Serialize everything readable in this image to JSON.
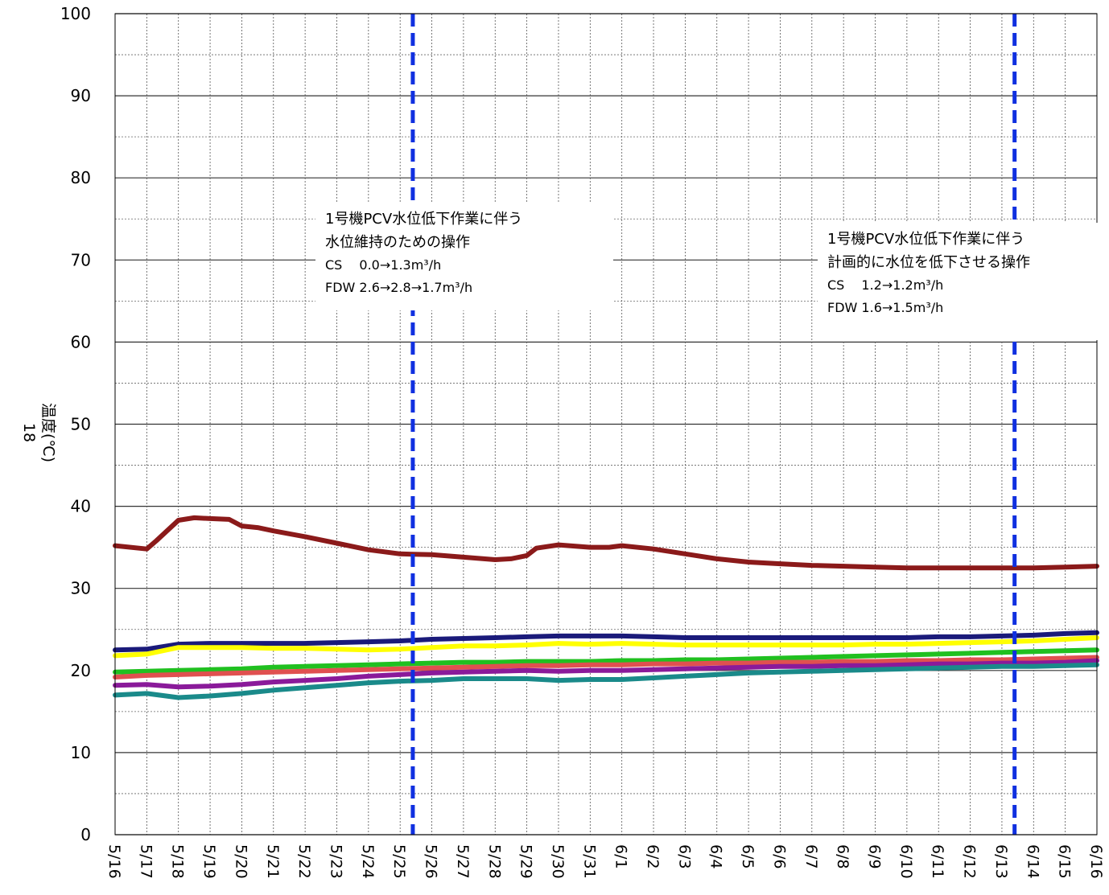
{
  "chart_data": {
    "type": "line",
    "title": "",
    "ylabel": "温度(℃)",
    "ylabel_extra": "18",
    "xlabel": "",
    "ylim": [
      0,
      100
    ],
    "yticks": [
      "0",
      "10",
      "20",
      "30",
      "40",
      "50",
      "60",
      "70",
      "80",
      "90",
      "100"
    ],
    "x_labels": [
      "5/16",
      "5/17",
      "5/18",
      "5/19",
      "5/20",
      "5/21",
      "5/22",
      "5/23",
      "5/24",
      "5/25",
      "5/26",
      "5/27",
      "5/28",
      "5/29",
      "5/30",
      "5/31",
      "6/1",
      "6/2",
      "6/3",
      "6/4",
      "6/5",
      "6/6",
      "6/7",
      "6/8",
      "6/9",
      "6/10",
      "6/11",
      "6/12",
      "6/13",
      "6/14",
      "6/15",
      "6/16"
    ],
    "grid": true,
    "series": [
      {
        "color": "#8b1a1a",
        "x": [
          0,
          1,
          1.3,
          2,
          2.5,
          3,
          3.6,
          4,
          4.5,
          5,
          6,
          7,
          8,
          9,
          10,
          11,
          12,
          12.5,
          13,
          13.3,
          14,
          15,
          15.6,
          16,
          17,
          18,
          19,
          20,
          21,
          22,
          23,
          24,
          25,
          26,
          27,
          28,
          29,
          30,
          31
        ],
        "values": [
          35.2,
          34.8,
          35.8,
          38.3,
          38.6,
          38.5,
          38.4,
          37.6,
          37.4,
          37.0,
          36.3,
          35.5,
          34.7,
          34.2,
          34.1,
          33.8,
          33.5,
          33.6,
          34.0,
          34.9,
          35.3,
          35.0,
          35.0,
          35.2,
          34.8,
          34.2,
          33.6,
          33.2,
          33.0,
          32.8,
          32.7,
          32.6,
          32.5,
          32.5,
          32.5,
          32.5,
          32.5,
          32.6,
          32.7
        ]
      },
      {
        "color": "#1a1a7a",
        "x": [
          0,
          1,
          2,
          3,
          4,
          5,
          6,
          7,
          8,
          9,
          10,
          11,
          12,
          13,
          14,
          15,
          16,
          17,
          18,
          19,
          20,
          21,
          22,
          23,
          24,
          25,
          26,
          27,
          28,
          29,
          30,
          31
        ],
        "values": [
          22.5,
          22.6,
          23.2,
          23.3,
          23.3,
          23.3,
          23.3,
          23.4,
          23.5,
          23.6,
          23.8,
          23.9,
          24.0,
          24.1,
          24.2,
          24.2,
          24.2,
          24.1,
          24.0,
          24.0,
          24.0,
          24.0,
          24.0,
          24.0,
          24.0,
          24.0,
          24.1,
          24.1,
          24.2,
          24.3,
          24.5,
          24.6
        ]
      },
      {
        "color": "#ffff00",
        "x": [
          0,
          1,
          2,
          3,
          4,
          5,
          6,
          7,
          8,
          9,
          10,
          11,
          12,
          13,
          14,
          15,
          16,
          17,
          18,
          19,
          20,
          21,
          22,
          23,
          24,
          25,
          26,
          27,
          28,
          29,
          30,
          31
        ],
        "values": [
          21.8,
          22.0,
          22.8,
          22.8,
          22.8,
          22.7,
          22.7,
          22.6,
          22.5,
          22.6,
          22.8,
          23.0,
          23.0,
          23.1,
          23.3,
          23.2,
          23.3,
          23.2,
          23.1,
          23.1,
          23.1,
          23.1,
          23.1,
          23.1,
          23.2,
          23.2,
          23.3,
          23.4,
          23.5,
          23.6,
          23.8,
          24.0
        ]
      },
      {
        "color": "#20c020",
        "x": [
          0,
          1,
          2,
          3,
          4,
          5,
          6,
          7,
          8,
          9,
          10,
          11,
          12,
          13,
          14,
          15,
          16,
          17,
          18,
          19,
          20,
          21,
          22,
          23,
          24,
          25,
          26,
          27,
          28,
          29,
          30,
          31
        ],
        "values": [
          19.8,
          19.9,
          20.0,
          20.1,
          20.2,
          20.4,
          20.5,
          20.6,
          20.7,
          20.8,
          20.9,
          21.0,
          21.0,
          21.1,
          21.1,
          21.1,
          21.2,
          21.2,
          21.3,
          21.3,
          21.4,
          21.5,
          21.6,
          21.7,
          21.8,
          21.9,
          22.0,
          22.1,
          22.2,
          22.3,
          22.4,
          22.5
        ]
      },
      {
        "color": "#e05050",
        "x": [
          0,
          1,
          2,
          3,
          4,
          5,
          6,
          7,
          8,
          9,
          10,
          11,
          12,
          13,
          14,
          15,
          16,
          17,
          18,
          19,
          20,
          21,
          22,
          23,
          24,
          25,
          26,
          27,
          28,
          29,
          30,
          31
        ],
        "values": [
          19.2,
          19.4,
          19.5,
          19.6,
          19.7,
          19.8,
          19.9,
          20.0,
          20.1,
          20.2,
          20.3,
          20.4,
          20.5,
          20.6,
          20.6,
          20.7,
          20.7,
          20.8,
          20.8,
          20.9,
          20.9,
          21.0,
          21.0,
          21.1,
          21.1,
          21.2,
          21.2,
          21.3,
          21.3,
          21.4,
          21.5,
          21.6
        ]
      },
      {
        "color": "#8a1a9a",
        "x": [
          0,
          1,
          2,
          3,
          4,
          5,
          6,
          7,
          8,
          9,
          10,
          11,
          12,
          13,
          14,
          15,
          16,
          17,
          18,
          19,
          20,
          21,
          22,
          23,
          24,
          25,
          26,
          27,
          28,
          29,
          30,
          31
        ],
        "values": [
          18.2,
          18.3,
          18.0,
          18.1,
          18.3,
          18.6,
          18.8,
          19.0,
          19.3,
          19.5,
          19.7,
          19.8,
          19.9,
          20.0,
          19.9,
          20.0,
          20.0,
          20.1,
          20.2,
          20.3,
          20.4,
          20.5,
          20.5,
          20.6,
          20.6,
          20.7,
          20.8,
          20.8,
          20.9,
          20.9,
          21.0,
          21.2
        ]
      },
      {
        "color": "#1a8a8a",
        "x": [
          0,
          1,
          2,
          3,
          4,
          5,
          6,
          7,
          8,
          9,
          10,
          11,
          12,
          13,
          14,
          15,
          16,
          17,
          18,
          19,
          20,
          21,
          22,
          23,
          24,
          25,
          26,
          27,
          28,
          29,
          30,
          31
        ],
        "values": [
          17.0,
          17.2,
          16.7,
          16.9,
          17.2,
          17.6,
          17.9,
          18.2,
          18.5,
          18.7,
          18.8,
          19.0,
          19.0,
          19.0,
          18.8,
          18.9,
          18.9,
          19.1,
          19.3,
          19.5,
          19.7,
          19.8,
          19.9,
          20.0,
          20.1,
          20.2,
          20.3,
          20.4,
          20.5,
          20.5,
          20.6,
          20.7
        ]
      }
    ],
    "event_lines": [
      {
        "x": 9.4,
        "color": "#1030e0"
      },
      {
        "x": 28.4,
        "color": "#1030e0"
      }
    ],
    "annotations": [
      {
        "title_lines": [
          "1号機PCV水位低下作業に伴う",
          "水位維持のための操作"
        ],
        "detail_lines": [
          "CS　 0.0→1.3m³/h",
          "FDW  2.6→2.8→1.7m³/h"
        ]
      },
      {
        "title_lines": [
          "1号機PCV水位低下作業に伴う",
          "計画的に水位を低下させる操作"
        ],
        "detail_lines": [
          "CS　 1.2→1.2m³/h",
          "FDW  1.6→1.5m³/h"
        ]
      }
    ]
  }
}
